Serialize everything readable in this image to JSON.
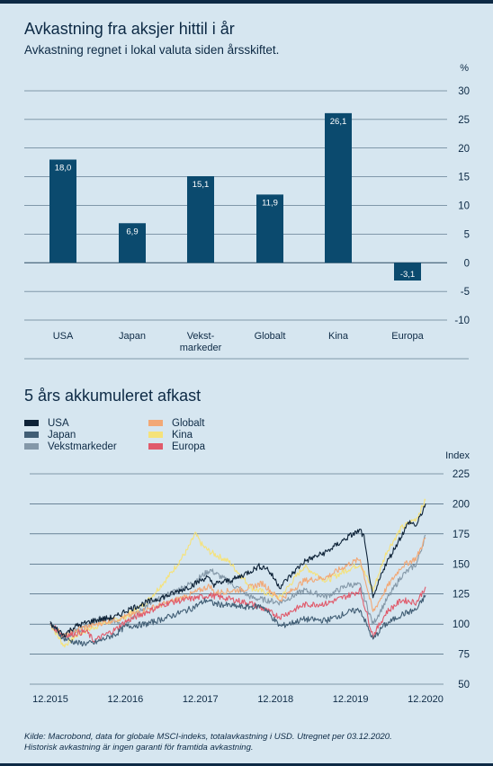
{
  "header": {
    "title": "Avkastning fra aksjer hittil i år",
    "subtitle": "Avkastning regnet i lokal valuta siden årsskiftet."
  },
  "colors": {
    "bar": "#0b4a6e",
    "grid": "#2a4a63",
    "text": "#0d2a45",
    "background": "#d6e6f0"
  },
  "line_section": {
    "title": "5 års akkumuleret afkast"
  },
  "footer": {
    "line1": "Kilde: Macrobond, data for globale MSCI-indeks, totalavkastning i USD. Utregnet per 03.12.2020.",
    "line2": "Historisk avkastning är ingen garanti för framtida avkastning."
  },
  "chart_data": [
    {
      "type": "bar",
      "unit_label": "%",
      "categories": [
        [
          "USA"
        ],
        [
          "Japan"
        ],
        [
          "Vekst-",
          "markeder"
        ],
        [
          "Globalt"
        ],
        [
          "Kina"
        ],
        [
          "Europa"
        ]
      ],
      "values": [
        18.0,
        6.9,
        15.1,
        11.9,
        26.1,
        -3.1
      ],
      "value_labels": [
        "18,0",
        "6,9",
        "15,1",
        "11,9",
        "26,1",
        "-3,1"
      ],
      "yticks": [
        30,
        25,
        20,
        15,
        10,
        5,
        0,
        -5,
        -10
      ],
      "ytick_labels": [
        "30",
        "25",
        "20",
        "15",
        "10",
        "5",
        "0",
        "-5",
        "-10"
      ],
      "ylim": [
        -10,
        30
      ],
      "grid": true
    },
    {
      "type": "line",
      "unit_label": "Index",
      "ylim": [
        50,
        225
      ],
      "yticks": [
        225,
        200,
        175,
        150,
        125,
        100,
        75,
        50
      ],
      "xlim": [
        2015.92,
        2020.92
      ],
      "xticks": [
        2015.92,
        2016.92,
        2017.92,
        2018.92,
        2019.92,
        2020.92
      ],
      "xtick_labels": [
        "12.2015",
        "12.2016",
        "12.2017",
        "12.2018",
        "12.2019",
        "12.2020"
      ],
      "legend_position": "top-left",
      "series": [
        {
          "name": "USA",
          "color": "#0d2237",
          "width": 1.1,
          "points": [
            [
              2015.92,
              100
            ],
            [
              2016.1,
              91
            ],
            [
              2016.25,
              98
            ],
            [
              2016.5,
              103
            ],
            [
              2016.8,
              106
            ],
            [
              2016.92,
              111
            ],
            [
              2017.2,
              118
            ],
            [
              2017.5,
              124
            ],
            [
              2017.8,
              132
            ],
            [
              2018.0,
              139
            ],
            [
              2018.1,
              133
            ],
            [
              2018.4,
              138
            ],
            [
              2018.7,
              148
            ],
            [
              2018.8,
              147
            ],
            [
              2018.98,
              131
            ],
            [
              2019.3,
              152
            ],
            [
              2019.6,
              160
            ],
            [
              2019.9,
              173
            ],
            [
              2020.05,
              178
            ],
            [
              2020.1,
              172
            ],
            [
              2020.22,
              120
            ],
            [
              2020.35,
              145
            ],
            [
              2020.55,
              168
            ],
            [
              2020.7,
              185
            ],
            [
              2020.8,
              182
            ],
            [
              2020.92,
              200
            ]
          ]
        },
        {
          "name": "Japan",
          "color": "#415e75",
          "width": 1.1,
          "points": [
            [
              2015.92,
              100
            ],
            [
              2016.1,
              88
            ],
            [
              2016.3,
              84
            ],
            [
              2016.5,
              84
            ],
            [
              2016.8,
              92
            ],
            [
              2016.92,
              98
            ],
            [
              2017.2,
              100
            ],
            [
              2017.5,
              106
            ],
            [
              2017.8,
              113
            ],
            [
              2018.0,
              120
            ],
            [
              2018.1,
              117
            ],
            [
              2018.5,
              114
            ],
            [
              2018.75,
              115
            ],
            [
              2018.98,
              98
            ],
            [
              2019.3,
              104
            ],
            [
              2019.6,
              103
            ],
            [
              2019.9,
              110
            ],
            [
              2020.05,
              112
            ],
            [
              2020.22,
              87
            ],
            [
              2020.35,
              98
            ],
            [
              2020.6,
              108
            ],
            [
              2020.8,
              112
            ],
            [
              2020.92,
              124
            ]
          ]
        },
        {
          "name": "Vekstmarkeder",
          "color": "#8498a8",
          "width": 1.1,
          "points": [
            [
              2015.92,
              100
            ],
            [
              2016.1,
              89
            ],
            [
              2016.3,
              95
            ],
            [
              2016.6,
              105
            ],
            [
              2016.92,
              101
            ],
            [
              2017.2,
              115
            ],
            [
              2017.5,
              125
            ],
            [
              2017.8,
              134
            ],
            [
              2018.05,
              145
            ],
            [
              2018.3,
              135
            ],
            [
              2018.6,
              122
            ],
            [
              2018.98,
              118
            ],
            [
              2019.3,
              128
            ],
            [
              2019.6,
              123
            ],
            [
              2019.9,
              133
            ],
            [
              2020.05,
              132
            ],
            [
              2020.22,
              100
            ],
            [
              2020.4,
              120
            ],
            [
              2020.6,
              140
            ],
            [
              2020.8,
              150
            ],
            [
              2020.92,
              174
            ]
          ]
        },
        {
          "name": "Globalt",
          "color": "#f2a876",
          "width": 1.1,
          "points": [
            [
              2015.92,
              100
            ],
            [
              2016.1,
              90
            ],
            [
              2016.3,
              96
            ],
            [
              2016.6,
              101
            ],
            [
              2016.92,
              106
            ],
            [
              2017.2,
              112
            ],
            [
              2017.5,
              118
            ],
            [
              2017.8,
              125
            ],
            [
              2018.05,
              132
            ],
            [
              2018.1,
              126
            ],
            [
              2018.5,
              129
            ],
            [
              2018.75,
              134
            ],
            [
              2018.98,
              120
            ],
            [
              2019.3,
              136
            ],
            [
              2019.6,
              139
            ],
            [
              2019.9,
              150
            ],
            [
              2020.05,
              154
            ],
            [
              2020.22,
              110
            ],
            [
              2020.4,
              130
            ],
            [
              2020.6,
              148
            ],
            [
              2020.8,
              155
            ],
            [
              2020.92,
              172
            ]
          ]
        },
        {
          "name": "Kina",
          "color": "#f5e27a",
          "width": 1.1,
          "points": [
            [
              2015.92,
              100
            ],
            [
              2016.1,
              82
            ],
            [
              2016.3,
              92
            ],
            [
              2016.6,
              100
            ],
            [
              2016.92,
              106
            ],
            [
              2017.2,
              118
            ],
            [
              2017.5,
              140
            ],
            [
              2017.75,
              162
            ],
            [
              2017.85,
              175
            ],
            [
              2017.95,
              165
            ],
            [
              2018.05,
              160
            ],
            [
              2018.3,
              152
            ],
            [
              2018.6,
              130
            ],
            [
              2018.98,
              122
            ],
            [
              2019.3,
              148
            ],
            [
              2019.6,
              136
            ],
            [
              2019.9,
              146
            ],
            [
              2020.05,
              150
            ],
            [
              2020.22,
              128
            ],
            [
              2020.4,
              160
            ],
            [
              2020.6,
              180
            ],
            [
              2020.8,
              188
            ],
            [
              2020.92,
              203
            ]
          ]
        },
        {
          "name": "Europa",
          "color": "#e05a6b",
          "width": 1.1,
          "points": [
            [
              2015.92,
              100
            ],
            [
              2016.1,
              90
            ],
            [
              2016.4,
              94
            ],
            [
              2016.5,
              86
            ],
            [
              2016.8,
              96
            ],
            [
              2016.92,
              102
            ],
            [
              2017.2,
              110
            ],
            [
              2017.5,
              118
            ],
            [
              2017.8,
              121
            ],
            [
              2018.05,
              124
            ],
            [
              2018.3,
              121
            ],
            [
              2018.6,
              117
            ],
            [
              2018.98,
              106
            ],
            [
              2019.3,
              116
            ],
            [
              2019.6,
              117
            ],
            [
              2019.9,
              124
            ],
            [
              2020.05,
              128
            ],
            [
              2020.22,
              90
            ],
            [
              2020.4,
              110
            ],
            [
              2020.6,
              120
            ],
            [
              2020.8,
              118
            ],
            [
              2020.92,
              131
            ]
          ]
        }
      ]
    }
  ]
}
